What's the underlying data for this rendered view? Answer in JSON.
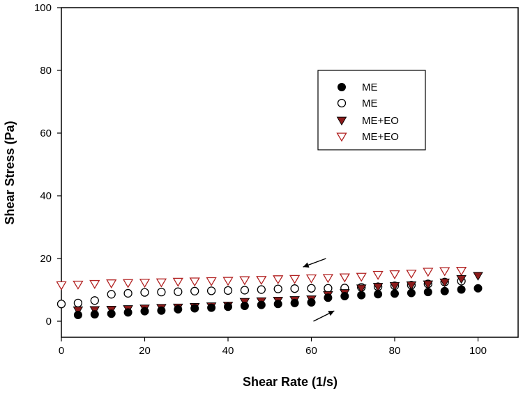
{
  "chart_data": {
    "type": "scatter",
    "title": "",
    "xlabel": "Shear Rate (1/s)",
    "ylabel": "Shear Stress (Pa)",
    "xlim": [
      0,
      110
    ],
    "ylim": [
      -5,
      100
    ],
    "xticks": [
      0,
      20,
      40,
      60,
      80,
      100
    ],
    "yticks": [
      0,
      20,
      40,
      60,
      80,
      100
    ],
    "grid": false,
    "legend_position": "top-right",
    "series": [
      {
        "name": "ME",
        "marker": "filled-circle",
        "color": "#000000",
        "x": [
          4,
          8,
          12,
          16,
          20,
          24,
          28,
          32,
          36,
          40,
          44,
          48,
          52,
          56,
          60,
          64,
          68,
          72,
          76,
          80,
          84,
          88,
          92,
          96,
          100
        ],
        "y": [
          2.0,
          2.2,
          2.4,
          2.8,
          3.2,
          3.4,
          3.8,
          4.1,
          4.3,
          4.6,
          4.9,
          5.2,
          5.5,
          5.8,
          6.0,
          7.5,
          8.0,
          8.3,
          8.6,
          8.8,
          9.0,
          9.3,
          9.6,
          10.1,
          10.5
        ]
      },
      {
        "name": "ME",
        "marker": "open-circle",
        "color": "#000000",
        "x": [
          0,
          4,
          8,
          12,
          16,
          20,
          24,
          28,
          32,
          36,
          40,
          44,
          48,
          52,
          56,
          60,
          64,
          68,
          72,
          76,
          80,
          84,
          88,
          92,
          96
        ],
        "y": [
          5.5,
          5.8,
          6.6,
          8.6,
          8.9,
          9.2,
          9.3,
          9.4,
          9.6,
          9.7,
          9.8,
          9.9,
          10.1,
          10.3,
          10.4,
          10.5,
          10.5,
          10.6,
          10.8,
          11.0,
          11.3,
          11.5,
          11.9,
          12.5,
          12.8
        ]
      },
      {
        "name": "ME+EO",
        "marker": "filled-triangle-down",
        "color": "#8b1a1a",
        "x": [
          4,
          8,
          12,
          16,
          20,
          24,
          28,
          32,
          36,
          40,
          44,
          48,
          52,
          56,
          60,
          64,
          68,
          72,
          76,
          80,
          84,
          88,
          92,
          96,
          100
        ],
        "y": [
          3.5,
          3.6,
          3.7,
          3.9,
          4.1,
          4.3,
          4.4,
          4.6,
          4.8,
          5.0,
          6.2,
          6.4,
          6.6,
          6.8,
          7.0,
          8.4,
          9.0,
          10.5,
          11.0,
          11.3,
          11.5,
          11.8,
          12.4,
          13.5,
          14.5
        ]
      },
      {
        "name": "ME+EO",
        "marker": "open-triangle-down",
        "color": "#b22222",
        "x": [
          0,
          4,
          8,
          12,
          16,
          20,
          24,
          28,
          32,
          36,
          40,
          44,
          48,
          52,
          56,
          60,
          64,
          68,
          72,
          76,
          80,
          84,
          88,
          92,
          96
        ],
        "y": [
          11.5,
          11.7,
          11.9,
          12.1,
          12.2,
          12.3,
          12.4,
          12.6,
          12.7,
          12.8,
          12.9,
          13.1,
          13.2,
          13.4,
          13.5,
          13.7,
          13.8,
          14.0,
          14.2,
          14.8,
          15.0,
          15.2,
          15.8,
          16.0,
          16.1
        ]
      }
    ],
    "annotations": [
      {
        "type": "arrow",
        "from": [
          63.5,
          20
        ],
        "to": [
          58,
          17.3
        ]
      },
      {
        "type": "arrow",
        "from": [
          60.5,
          0
        ],
        "to": [
          65.5,
          3.3
        ]
      }
    ]
  }
}
